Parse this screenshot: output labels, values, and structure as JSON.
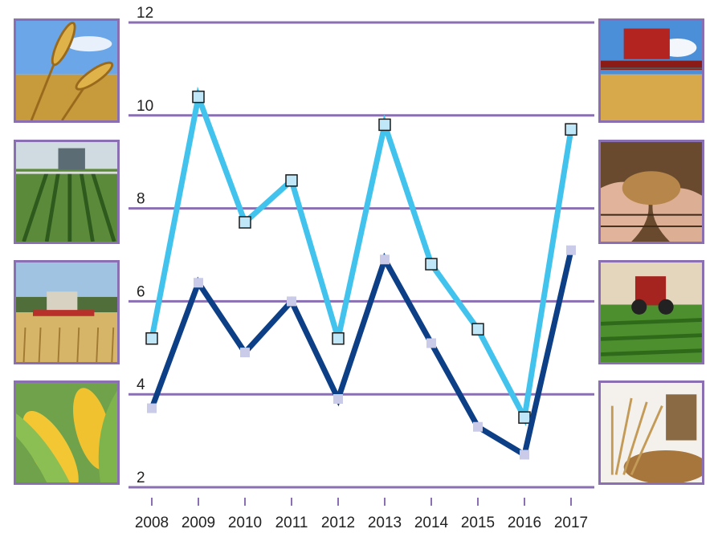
{
  "chart_data": {
    "type": "line",
    "x": [
      "2008",
      "2009",
      "2010",
      "2011",
      "2012",
      "2013",
      "2014",
      "2015",
      "2016",
      "2017"
    ],
    "series": [
      {
        "color": "#42c3ee",
        "marker": "square-outlined",
        "values": [
          5.2,
          10.4,
          7.7,
          8.6,
          5.2,
          9.8,
          6.8,
          5.4,
          3.5,
          9.7
        ]
      },
      {
        "color": "#0d3f86",
        "marker": "square-filled-light",
        "values": [
          3.7,
          6.4,
          4.9,
          6.0,
          3.9,
          6.9,
          5.1,
          3.3,
          2.7,
          7.1
        ]
      }
    ],
    "ylim": [
      2,
      12
    ],
    "yticks": [
      2,
      4,
      6,
      8,
      10,
      12
    ],
    "grid": "horizontal",
    "gridline_color": "#8a70b3",
    "legend": "none"
  },
  "side_photos": {
    "left": [
      "wheat-ears-icon",
      "crop-sprayer-icon",
      "combine-harvest-icon",
      "corn-cobs-icon"
    ],
    "right": [
      "combine-field-icon",
      "grain-in-hands-icon",
      "tractor-field-icon",
      "wheat-sheaf-icon"
    ]
  }
}
